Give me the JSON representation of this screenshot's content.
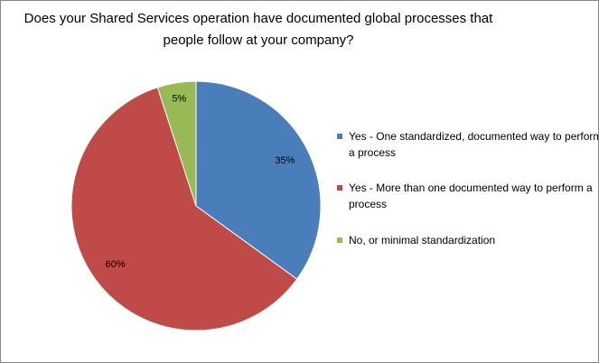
{
  "chart_data": {
    "type": "pie",
    "title": "Does your Shared Services operation have documented  global processes that people follow at your company?",
    "categories": [
      "Yes - One standardized, documented way to perform a process",
      "Yes - More than one documented way to perform a process",
      "No, or minimal standardization"
    ],
    "values": [
      35,
      60,
      5
    ],
    "value_labels": [
      "35%",
      "60%",
      "5%"
    ],
    "colors": [
      "#4a7ebb",
      "#be4b48",
      "#98b954"
    ],
    "legend": "right"
  }
}
